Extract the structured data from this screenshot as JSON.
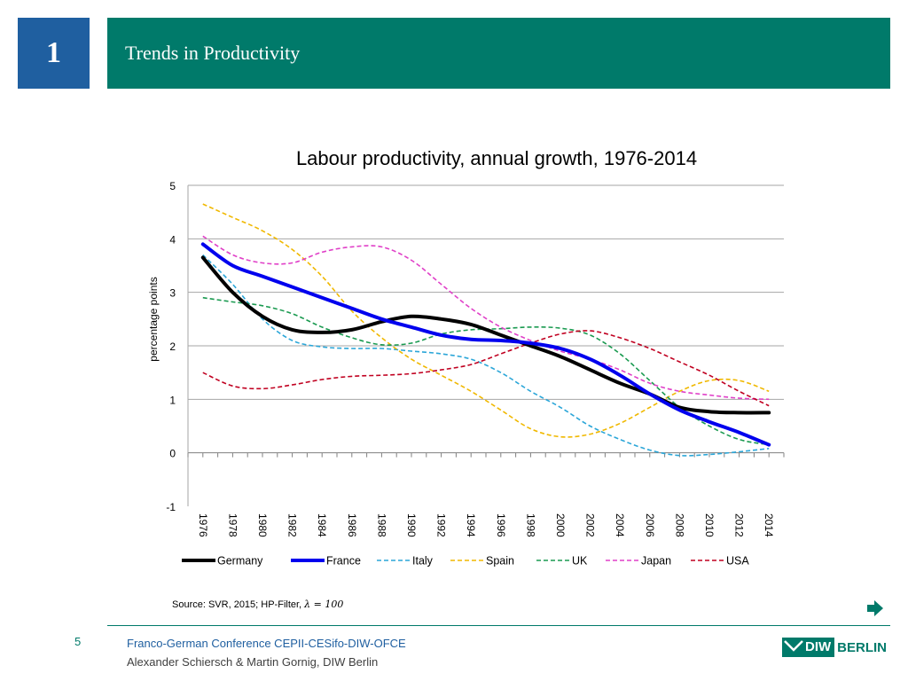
{
  "slide": {
    "section_number": "1",
    "section_title": "Trends in Productivity",
    "page_number": "5"
  },
  "chart_data": {
    "type": "line",
    "title": "Labour productivity, annual growth, 1976-2014",
    "ylabel": "percentage points",
    "xlabel": "",
    "ylim": [
      -1,
      5
    ],
    "yticks": [
      -1,
      0,
      1,
      2,
      3,
      4,
      5
    ],
    "grid": true,
    "legend_position": "bottom",
    "x": [
      1976,
      1978,
      1980,
      1982,
      1984,
      1986,
      1988,
      1990,
      1992,
      1994,
      1996,
      1998,
      2000,
      2002,
      2004,
      2006,
      2008,
      2010,
      2012,
      2014
    ],
    "x_tick_labels": [
      "1976",
      "1978",
      "1980",
      "1982",
      "1984",
      "1986",
      "1988",
      "1990",
      "1992",
      "1994",
      "1996",
      "1998",
      "2000",
      "2002",
      "2004",
      "2006",
      "2008",
      "2010",
      "2012",
      "2014"
    ],
    "series": [
      {
        "name": "Germany",
        "color": "#000000",
        "style": "solid",
        "values": [
          3.65,
          3.0,
          2.55,
          2.3,
          2.25,
          2.3,
          2.45,
          2.55,
          2.5,
          2.4,
          2.2,
          2.0,
          1.8,
          1.55,
          1.3,
          1.1,
          0.85,
          0.77,
          0.75,
          0.75
        ]
      },
      {
        "name": "France",
        "color": "#0000ee",
        "style": "solid",
        "values": [
          3.9,
          3.5,
          3.3,
          3.1,
          2.9,
          2.7,
          2.5,
          2.35,
          2.2,
          2.12,
          2.1,
          2.05,
          1.95,
          1.75,
          1.45,
          1.1,
          0.8,
          0.58,
          0.38,
          0.15
        ]
      },
      {
        "name": "Italy",
        "color": "#2ba6d8",
        "style": "dashed",
        "values": [
          3.7,
          3.15,
          2.5,
          2.1,
          1.98,
          1.95,
          1.95,
          1.9,
          1.85,
          1.75,
          1.5,
          1.15,
          0.85,
          0.5,
          0.25,
          0.05,
          -0.05,
          -0.03,
          0.02,
          0.08
        ]
      },
      {
        "name": "Spain",
        "color": "#f0b800",
        "style": "dashed",
        "values": [
          4.65,
          4.4,
          4.15,
          3.8,
          3.3,
          2.65,
          2.15,
          1.75,
          1.45,
          1.15,
          0.8,
          0.45,
          0.3,
          0.35,
          0.55,
          0.85,
          1.15,
          1.35,
          1.35,
          1.15
        ]
      },
      {
        "name": "UK",
        "color": "#1a9a50",
        "style": "dashed",
        "values": [
          2.9,
          2.82,
          2.75,
          2.6,
          2.35,
          2.15,
          2.02,
          2.05,
          2.22,
          2.3,
          2.32,
          2.35,
          2.33,
          2.2,
          1.85,
          1.35,
          0.85,
          0.5,
          0.25,
          0.15
        ]
      },
      {
        "name": "Japan",
        "color": "#e040c8",
        "style": "dashed",
        "values": [
          4.05,
          3.7,
          3.55,
          3.55,
          3.75,
          3.85,
          3.85,
          3.6,
          3.15,
          2.7,
          2.35,
          2.1,
          1.9,
          1.75,
          1.55,
          1.3,
          1.15,
          1.08,
          1.02,
          1.0
        ]
      },
      {
        "name": "USA",
        "color": "#c00020",
        "style": "dashed",
        "values": [
          1.5,
          1.25,
          1.2,
          1.27,
          1.37,
          1.43,
          1.45,
          1.48,
          1.55,
          1.65,
          1.85,
          2.05,
          2.22,
          2.28,
          2.15,
          1.95,
          1.7,
          1.45,
          1.15,
          0.88
        ]
      }
    ]
  },
  "source": {
    "prefix": "Source:  SVR, 2015; HP-Filter, ",
    "lambda_expr": "λ = 100"
  },
  "footer": {
    "line1": "Franco-German Conference CEPII-CESifo-DIW-OFCE",
    "line2": "Alexander Schiersch & Martin Gornig, DIW Berlin",
    "logo_left": "DIW",
    "logo_right": "BERLIN"
  }
}
